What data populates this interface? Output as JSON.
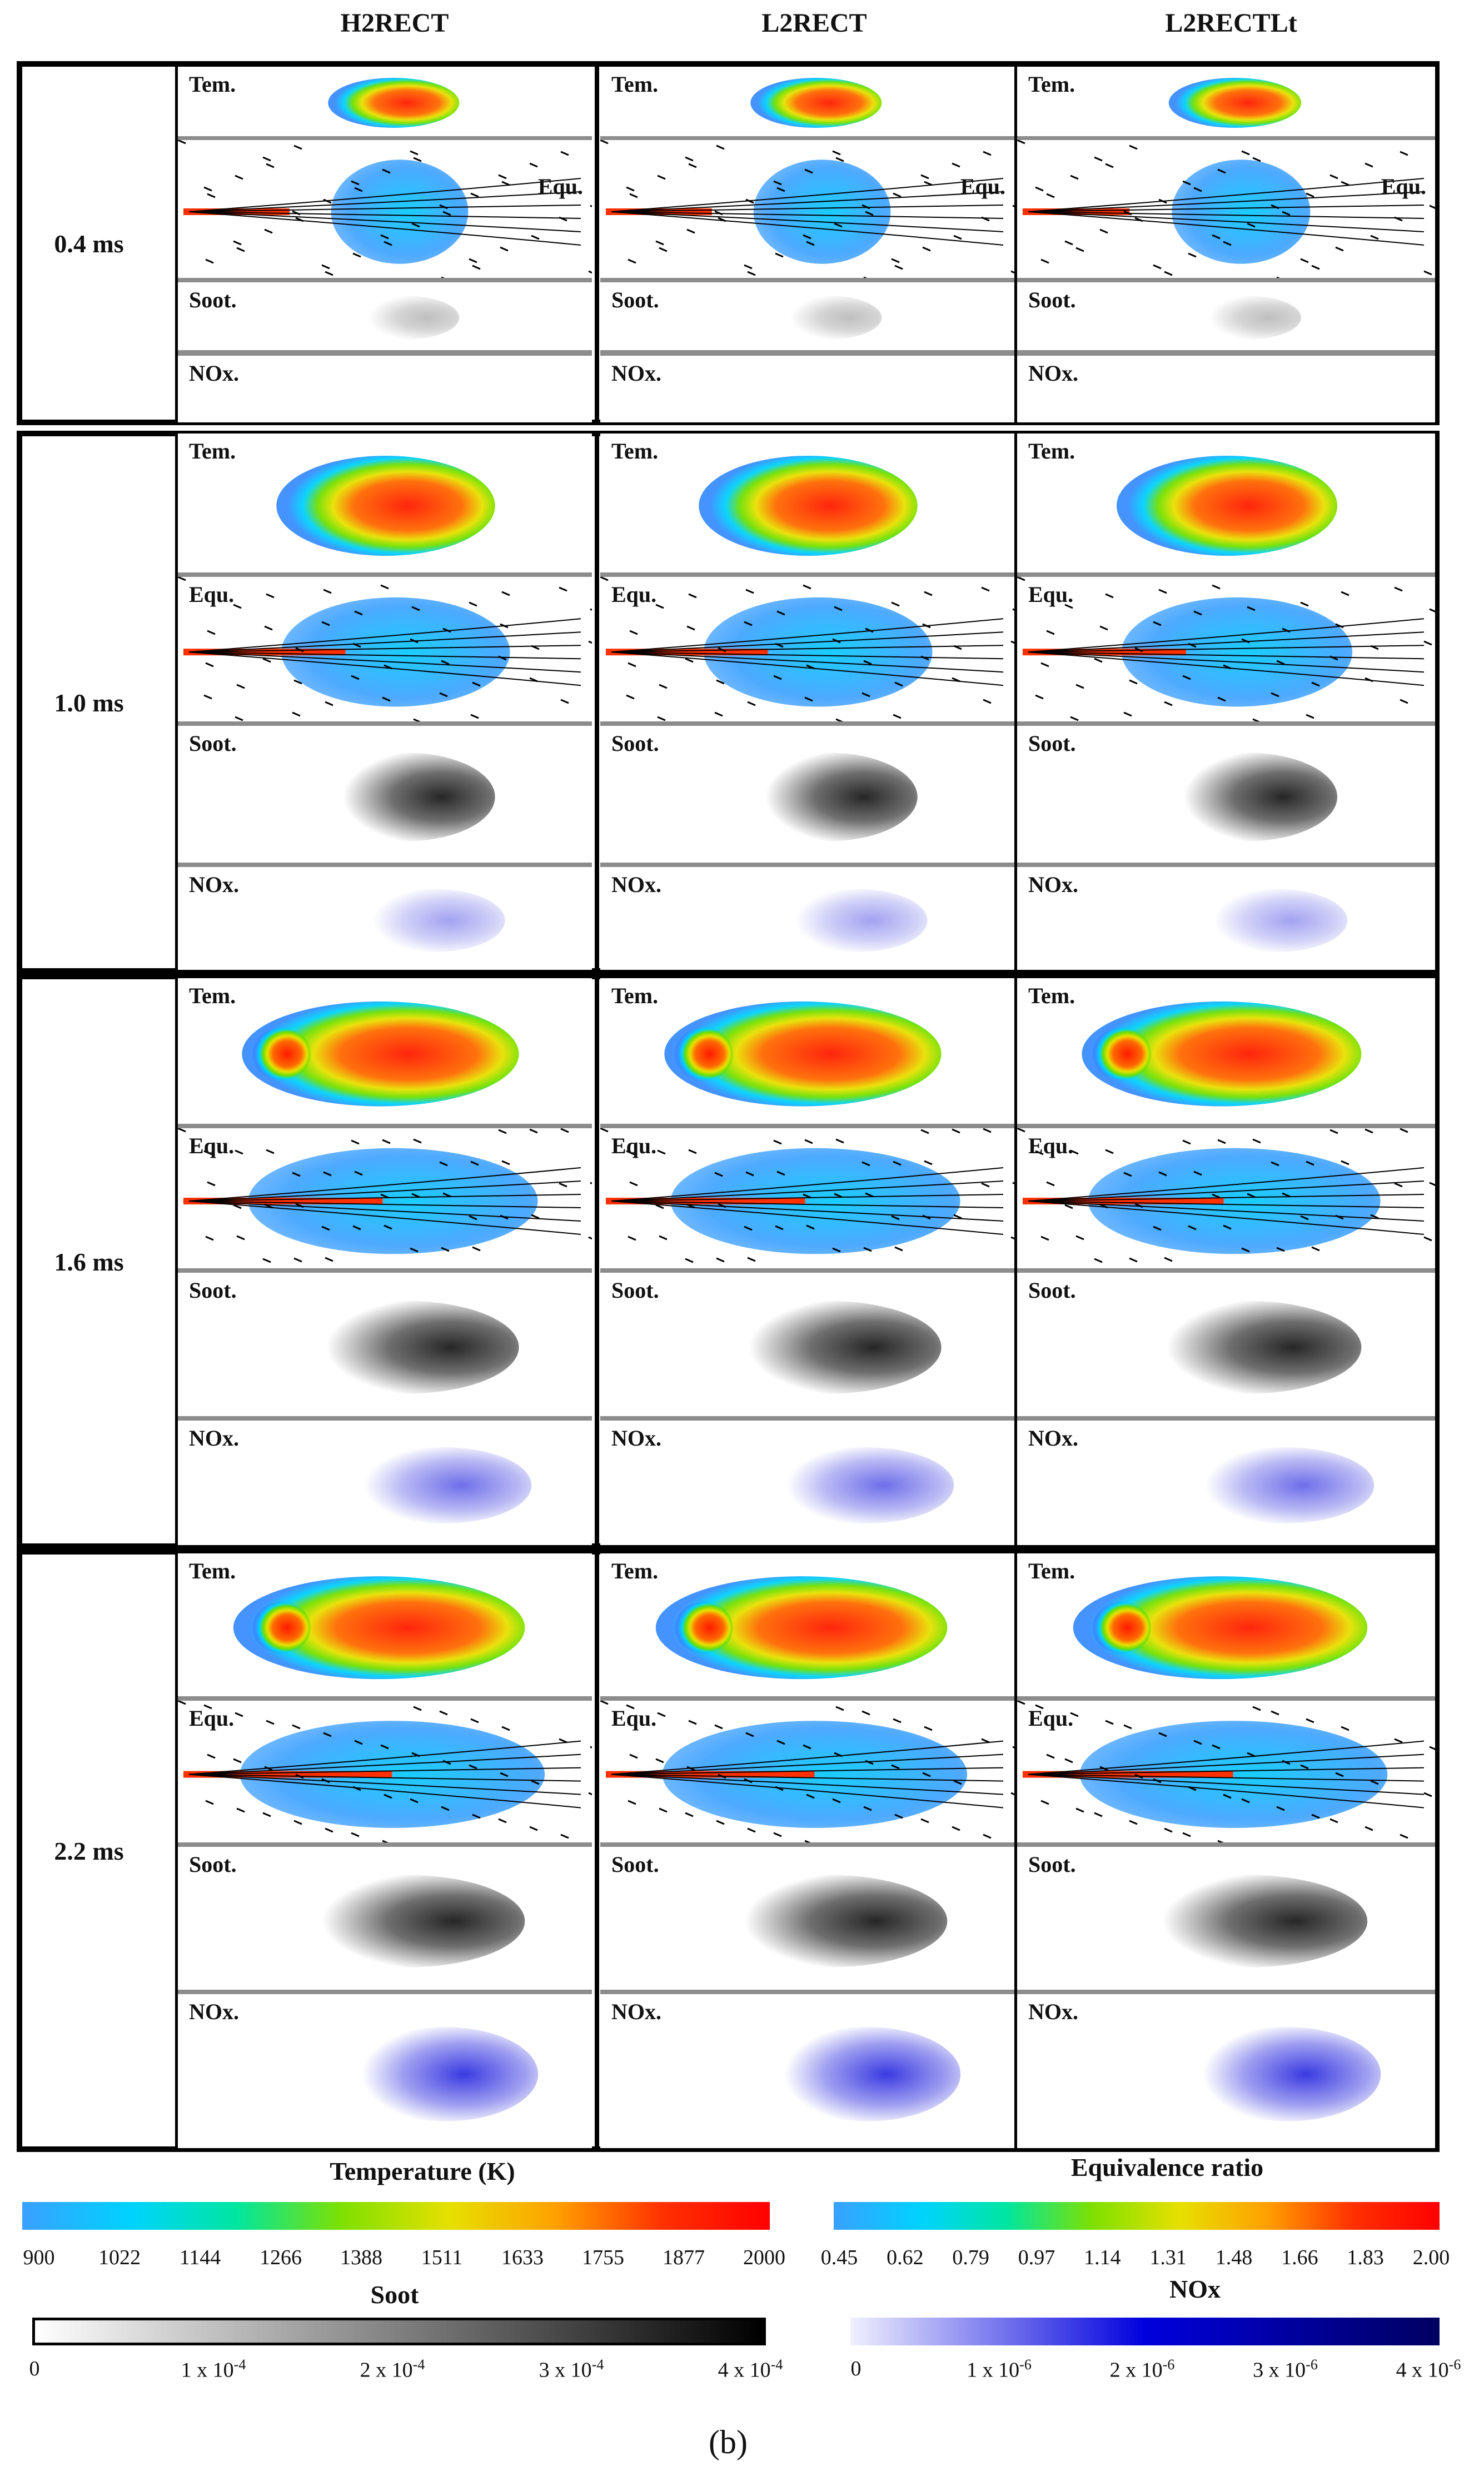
{
  "columns": [
    "H2RECT",
    "L2RECT",
    "L2RECTLt"
  ],
  "rows": [
    {
      "time": "0.4 ms",
      "panels": [
        "Tem.",
        "Equ.",
        "Soot.",
        "NOx."
      ]
    },
    {
      "time": "1.0 ms",
      "panels": [
        "Tem.",
        "Equ.",
        "Soot.",
        "NOx."
      ]
    },
    {
      "time": "1.6 ms",
      "panels": [
        "Tem.",
        "Equ.",
        "Soot.",
        "NOx."
      ]
    },
    {
      "time": "2.2 ms",
      "panels": [
        "Tem.",
        "Equ.",
        "Soot.",
        "NOx."
      ]
    }
  ],
  "colorbars": {
    "temperature": {
      "title": "Temperature (K)",
      "ticks": [
        "900",
        "1022",
        "1144",
        "1266",
        "1388",
        "1511",
        "1633",
        "1755",
        "1877",
        "2000"
      ],
      "colors": [
        "#3aa0ff",
        "#00d2ff",
        "#00e6a0",
        "#7fe000",
        "#e6e000",
        "#ffa000",
        "#ff3000",
        "#ff0000"
      ]
    },
    "equivalence": {
      "title": "Equivalence ratio",
      "ticks": [
        "0.45",
        "0.62",
        "0.79",
        "0.97",
        "1.14",
        "1.31",
        "1.48",
        "1.66",
        "1.83",
        "2.00"
      ],
      "colors": [
        "#3aa0ff",
        "#00d2ff",
        "#00e6a0",
        "#7fe000",
        "#e6e000",
        "#ffa000",
        "#ff3000",
        "#ff0000"
      ]
    },
    "soot": {
      "title": "Soot",
      "ticks": [
        "0",
        "1 x 10",
        "2 x 10",
        "3 x 10",
        "4 x 10"
      ],
      "exponent": "-4",
      "colors": [
        "#ffffff",
        "#000000"
      ]
    },
    "nox": {
      "title": "NOx",
      "ticks": [
        "0",
        "1 x 10",
        "2 x 10",
        "3 x 10",
        "4 x 10"
      ],
      "exponent": "-6",
      "colors": [
        "#f0f0ff",
        "#0000dd",
        "#000060"
      ]
    }
  },
  "caption": "(b)"
}
